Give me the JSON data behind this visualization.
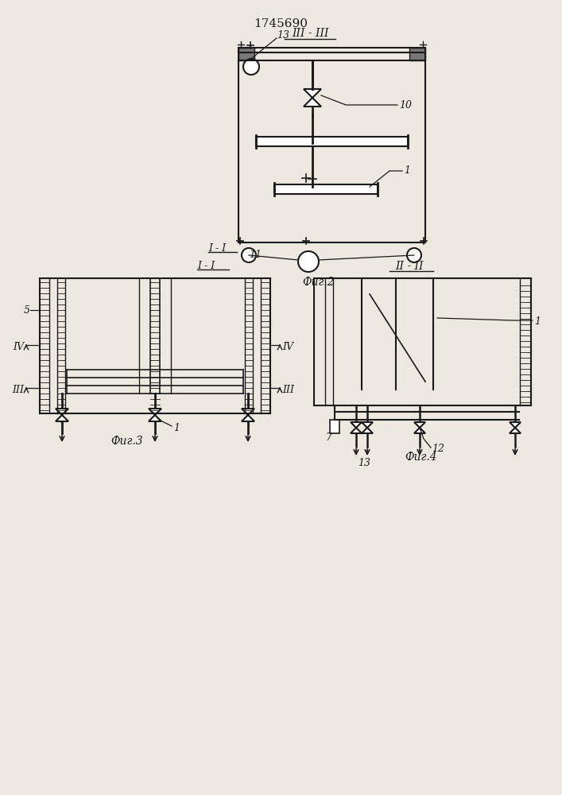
{
  "bg_color": "#ede8e0",
  "line_color": "#1a1a1a",
  "title_text": "1745690",
  "fig2_label": "III - III",
  "fig2_caption": "Фиг.2",
  "fig3_caption": "Фиг.3",
  "fig4_caption": "Фиг.4",
  "fig3_label": "I - I",
  "fig4_label": "II - II",
  "lw": 1.5
}
